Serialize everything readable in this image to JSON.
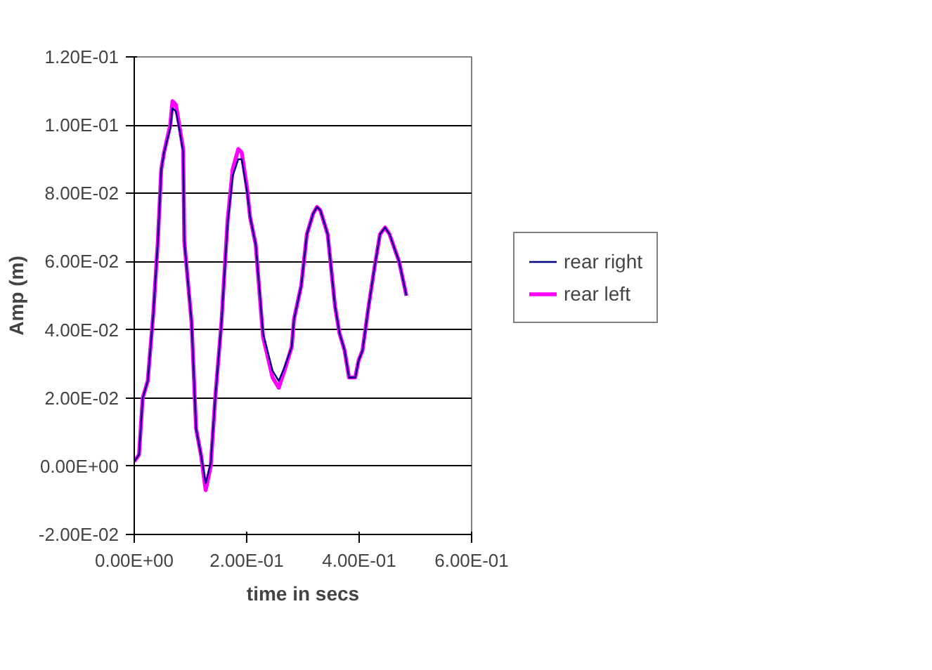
{
  "chart_data": {
    "type": "line",
    "xlabel": "time in secs",
    "ylabel": "Amp (m)",
    "xlim": [
      0,
      0.6
    ],
    "xticks": [
      {
        "value": 0,
        "label": "0.00E+00"
      },
      {
        "value": 0.2,
        "label": "2.00E-01"
      },
      {
        "value": 0.4,
        "label": "4.00E-01"
      },
      {
        "value": 0.6,
        "label": "6.00E-01"
      }
    ],
    "ylim": [
      -0.02,
      0.12
    ],
    "yticks": [
      {
        "value": -0.02,
        "label": "-2.00E-02"
      },
      {
        "value": 0,
        "label": "0.00E+00"
      },
      {
        "value": 0.02,
        "label": "2.00E-02"
      },
      {
        "value": 0.04,
        "label": "4.00E-02"
      },
      {
        "value": 0.06,
        "label": "6.00E-02"
      },
      {
        "value": 0.08,
        "label": "8.00E-02"
      },
      {
        "value": 0.1,
        "label": "1.00E-01"
      },
      {
        "value": 0.12,
        "label": "1.20E-01"
      }
    ],
    "grid": "y",
    "legend": "right",
    "marker": "none",
    "line_style": "solid",
    "x": [
      0,
      0.0085,
      0.015,
      0.024,
      0.034,
      0.042,
      0.048,
      0.053,
      0.064,
      0.068,
      0.074,
      0.08,
      0.087,
      0.089,
      0.102,
      0.11,
      0.119,
      0.127,
      0.136,
      0.144,
      0.155,
      0.166,
      0.175,
      0.185,
      0.191,
      0.201,
      0.206,
      0.216,
      0.229,
      0.246,
      0.257,
      0.267,
      0.28,
      0.284,
      0.297,
      0.307,
      0.318,
      0.325,
      0.331,
      0.344,
      0.357,
      0.365,
      0.374,
      0.382,
      0.393,
      0.399,
      0.406,
      0.416,
      0.427,
      0.437,
      0.446,
      0.454,
      0.471,
      0.484
    ],
    "series": [
      {
        "name": "rear right",
        "color": "#000080",
        "values": [
          0.0014,
          0.0034,
          0.02,
          0.025,
          0.045,
          0.066,
          0.087,
          0.092,
          0.099,
          0.105,
          0.104,
          0.099,
          0.092,
          0.066,
          0.042,
          0.011,
          0.003,
          -0.005,
          0.001,
          0.02,
          0.042,
          0.071,
          0.085,
          0.09,
          0.09,
          0.08,
          0.073,
          0.065,
          0.039,
          0.028,
          0.025,
          0.029,
          0.035,
          0.043,
          0.053,
          0.068,
          0.074,
          0.076,
          0.075,
          0.068,
          0.047,
          0.039,
          0.034,
          0.026,
          0.026,
          0.031,
          0.034,
          0.046,
          0.058,
          0.068,
          0.07,
          0.068,
          0.06,
          0.05
        ]
      },
      {
        "name": "rear left",
        "color": "#ff00ff",
        "values": [
          0.0014,
          0.0034,
          0.02,
          0.025,
          0.045,
          0.066,
          0.087,
          0.092,
          0.1,
          0.107,
          0.106,
          0.1,
          0.093,
          0.066,
          0.042,
          0.011,
          0.003,
          -0.007,
          0,
          0.02,
          0.042,
          0.072,
          0.087,
          0.093,
          0.092,
          0.081,
          0.073,
          0.065,
          0.038,
          0.026,
          0.023,
          0.028,
          0.035,
          0.043,
          0.053,
          0.068,
          0.074,
          0.076,
          0.075,
          0.068,
          0.047,
          0.039,
          0.034,
          0.026,
          0.026,
          0.031,
          0.034,
          0.046,
          0.058,
          0.068,
          0.07,
          0.068,
          0.06,
          0.05
        ]
      }
    ]
  }
}
